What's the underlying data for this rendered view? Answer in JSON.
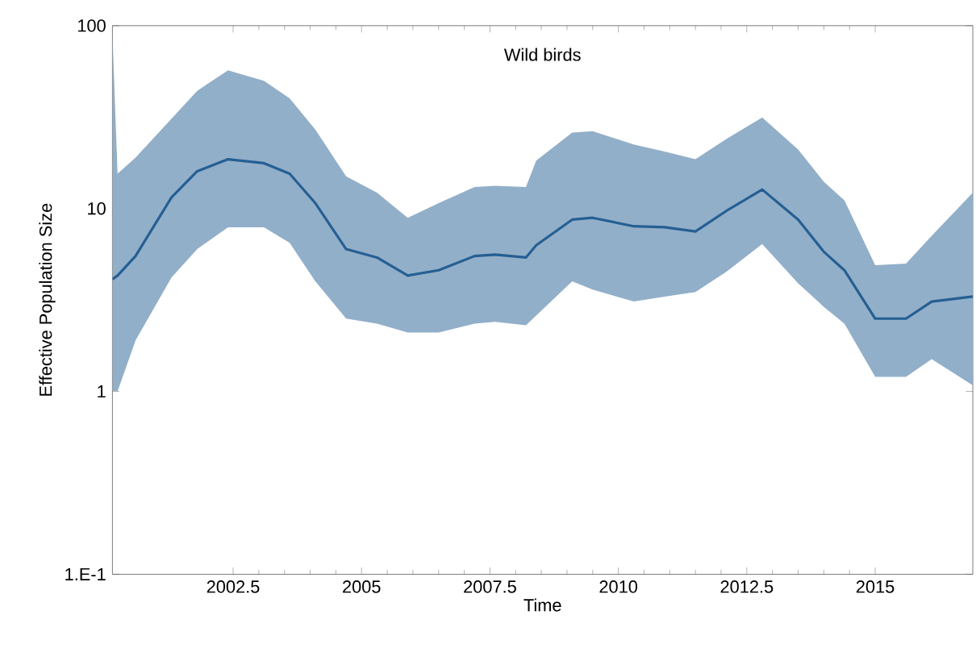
{
  "chart_data": {
    "type": "line",
    "title": "Wild birds",
    "xlabel": "Time",
    "ylabel": "Effective Population Size",
    "log": "y",
    "marker": "none",
    "line_style": "solid",
    "xlim": [
      2000.15,
      2016.9
    ],
    "xticks": [
      2002.5,
      2005,
      2007.5,
      2010,
      2012.5,
      2015
    ],
    "ylim": [
      0.1,
      100
    ],
    "yticks": [
      {
        "value": 0.1,
        "label": "1.E-1"
      },
      1,
      10,
      100
    ],
    "x": [
      2000.15,
      2000.25,
      2000.6,
      2001.3,
      2001.8,
      2002.4,
      2003.1,
      2003.6,
      2004.1,
      2004.7,
      2005.3,
      2005.9,
      2006.5,
      2007.2,
      2007.6,
      2008.2,
      2008.4,
      2009.1,
      2009.5,
      2010.3,
      2010.9,
      2011.5,
      2012.1,
      2012.8,
      2013.5,
      2014.0,
      2014.4,
      2015.0,
      2015.6,
      2016.1,
      2016.9
    ],
    "series": [
      {
        "color": "#255f93",
        "values": [
          4.1,
          4.3,
          5.5,
          11.5,
          16,
          18.6,
          17.7,
          15.5,
          10.7,
          6.0,
          5.4,
          4.3,
          4.6,
          5.5,
          5.6,
          5.4,
          6.3,
          8.7,
          8.9,
          8.0,
          7.9,
          7.5,
          9.7,
          12.7,
          8.7,
          5.8,
          4.6,
          2.5,
          2.5,
          3.1,
          3.3
        ],
        "upper": [
          90,
          15.5,
          19,
          31,
          44,
          57,
          50,
          40,
          27,
          15,
          12.2,
          8.9,
          10.7,
          13.1,
          13.3,
          13.1,
          18.3,
          26,
          26.5,
          22.4,
          20.5,
          18.6,
          24,
          31.5,
          21,
          14,
          11.1,
          4.9,
          5.0,
          7.1,
          12.2
        ],
        "lower": [
          1.0,
          1.0,
          1.9,
          4.2,
          6.0,
          7.9,
          7.9,
          6.5,
          4.0,
          2.5,
          2.35,
          2.1,
          2.1,
          2.35,
          2.4,
          2.3,
          2.6,
          4.0,
          3.6,
          3.1,
          3.3,
          3.5,
          4.5,
          6.4,
          3.9,
          2.9,
          2.35,
          1.2,
          1.2,
          1.5,
          1.08
        ]
      }
    ]
  }
}
